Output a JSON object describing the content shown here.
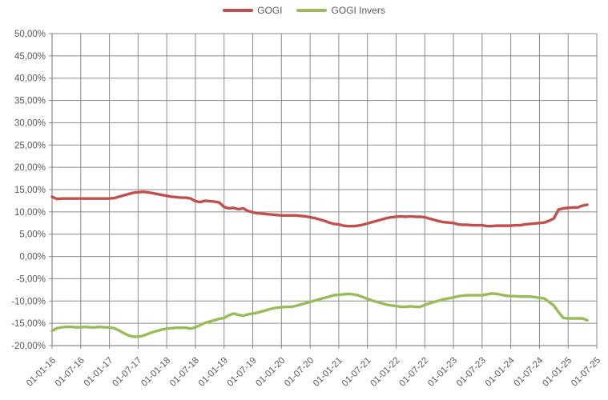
{
  "legend": {
    "items": [
      {
        "label": "GOGI"
      },
      {
        "label": "GOGI Invers"
      }
    ]
  },
  "style": {
    "grid_color": "#8a8a8a",
    "axis_color": "#8a8a8a",
    "label_color": "#595959",
    "background": "#ffffff"
  },
  "chart_data": {
    "type": "line",
    "title": "",
    "xlabel": "",
    "ylabel": "",
    "ylim": [
      -20,
      50
    ],
    "y_tick_step": 5,
    "grid": true,
    "legend_position": "top-center",
    "y_tick_labels": [
      "50,00%",
      "45,00%",
      "40,00%",
      "35,00%",
      "30,00%",
      "25,00%",
      "20,00%",
      "15,00%",
      "10,00%",
      "5,00%",
      "0,00%",
      "-5,00%",
      "-10,00%",
      "-15,00%",
      "-20,00%"
    ],
    "x_tick_labels": [
      "01-01-16",
      "01-07-16",
      "01-01-17",
      "01-07-17",
      "01-01-18",
      "01-07-18",
      "01-01-19",
      "01-07-19",
      "01-01-20",
      "01-07-20",
      "01-01-21",
      "01-07-21",
      "01-01-22",
      "01-07-22",
      "01-01-23",
      "01-07-23",
      "01-01-24",
      "01-07-24",
      "01-01-25",
      "01-07-25"
    ],
    "months_per_tick": 6,
    "x_start": "01-01-16",
    "x_frequency": "monthly",
    "series": [
      {
        "name": "GOGI",
        "color": "#c0504d",
        "values": [
          13.4,
          12.9,
          13.0,
          13.0,
          13.0,
          13.0,
          13.0,
          13.0,
          13.0,
          13.0,
          13.0,
          13.0,
          13.0,
          13.1,
          13.4,
          13.7,
          14.0,
          14.3,
          14.4,
          14.5,
          14.4,
          14.2,
          14.0,
          13.8,
          13.6,
          13.4,
          13.3,
          13.2,
          13.2,
          13.0,
          12.4,
          12.2,
          12.5,
          12.4,
          12.3,
          12.1,
          11.1,
          10.8,
          10.9,
          10.6,
          10.8,
          10.2,
          9.9,
          9.7,
          9.6,
          9.5,
          9.4,
          9.3,
          9.2,
          9.2,
          9.2,
          9.2,
          9.1,
          9.0,
          8.8,
          8.6,
          8.3,
          8.0,
          7.6,
          7.3,
          7.2,
          6.9,
          6.8,
          6.8,
          6.9,
          7.1,
          7.4,
          7.7,
          8.0,
          8.3,
          8.6,
          8.8,
          8.9,
          9.0,
          8.9,
          9.0,
          8.9,
          8.9,
          8.8,
          8.5,
          8.2,
          7.9,
          7.7,
          7.6,
          7.5,
          7.2,
          7.1,
          7.1,
          7.0,
          7.0,
          7.0,
          6.8,
          6.8,
          6.9,
          6.9,
          6.9,
          6.9,
          7.0,
          7.0,
          7.2,
          7.3,
          7.4,
          7.5,
          7.6,
          8.0,
          8.5,
          10.5,
          10.8,
          10.9,
          11.0,
          11.0,
          11.4,
          11.6
        ]
      },
      {
        "name": "GOGI Invers",
        "color": "#9bbb59",
        "values": [
          -16.7,
          -16.1,
          -15.9,
          -15.8,
          -15.8,
          -15.9,
          -15.9,
          -15.8,
          -15.9,
          -15.9,
          -15.8,
          -15.9,
          -15.9,
          -16.1,
          -16.6,
          -17.2,
          -17.7,
          -18.0,
          -18.0,
          -17.8,
          -17.4,
          -17.0,
          -16.7,
          -16.4,
          -16.2,
          -16.1,
          -16.0,
          -16.0,
          -16.0,
          -16.2,
          -15.9,
          -15.4,
          -14.9,
          -14.6,
          -14.3,
          -14.0,
          -13.8,
          -13.2,
          -12.8,
          -13.1,
          -13.3,
          -13.0,
          -12.8,
          -12.6,
          -12.3,
          -12.0,
          -11.7,
          -11.5,
          -11.4,
          -11.3,
          -11.3,
          -11.1,
          -10.8,
          -10.5,
          -10.2,
          -9.9,
          -9.6,
          -9.3,
          -9.0,
          -8.7,
          -8.6,
          -8.5,
          -8.4,
          -8.5,
          -8.7,
          -9.1,
          -9.5,
          -9.9,
          -10.2,
          -10.5,
          -10.8,
          -11.0,
          -11.1,
          -11.3,
          -11.3,
          -11.2,
          -11.3,
          -11.3,
          -10.9,
          -10.5,
          -10.2,
          -9.9,
          -9.6,
          -9.4,
          -9.2,
          -8.9,
          -8.8,
          -8.7,
          -8.7,
          -8.7,
          -8.7,
          -8.5,
          -8.3,
          -8.4,
          -8.6,
          -8.8,
          -8.9,
          -8.9,
          -9.0,
          -9.0,
          -9.0,
          -9.1,
          -9.3,
          -9.4,
          -10.2,
          -11.0,
          -12.5,
          -13.8,
          -13.9,
          -13.9,
          -13.9,
          -13.9,
          -14.3
        ]
      }
    ]
  }
}
